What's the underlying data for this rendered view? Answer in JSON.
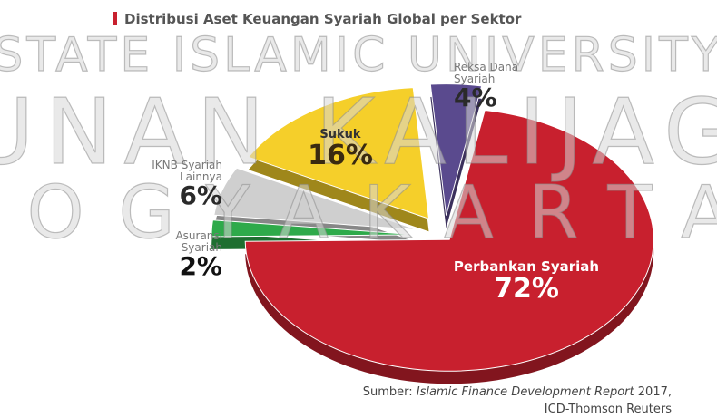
{
  "chart_data": {
    "type": "pie",
    "title": "Distribusi Aset Keuangan Syariah Global per Sektor",
    "categories": [
      "Perbankan Syariah",
      "Asuransi Syariah",
      "IKNB Syariah Lainnya",
      "Sukuk",
      "Reksa Dana Syariah"
    ],
    "values": [
      72,
      2,
      6,
      16,
      4
    ],
    "value_labels": [
      "72%",
      "2%",
      "6%",
      "16%",
      "4%"
    ],
    "colors": [
      "#c8202e",
      "#2eaa4a",
      "#cfcfcf",
      "#f5cf2a",
      "#5a4a8e"
    ],
    "watermark": [
      "STATE ISLAMIC UNIVERSITY",
      "SUNAN KALIJAGA",
      "YOGYAKARTA"
    ],
    "source": {
      "prefix": "Sumber:",
      "report": "Islamic Finance Development Report",
      "year": "2017,",
      "publisher": "ICD-Thomson Reuters"
    }
  }
}
